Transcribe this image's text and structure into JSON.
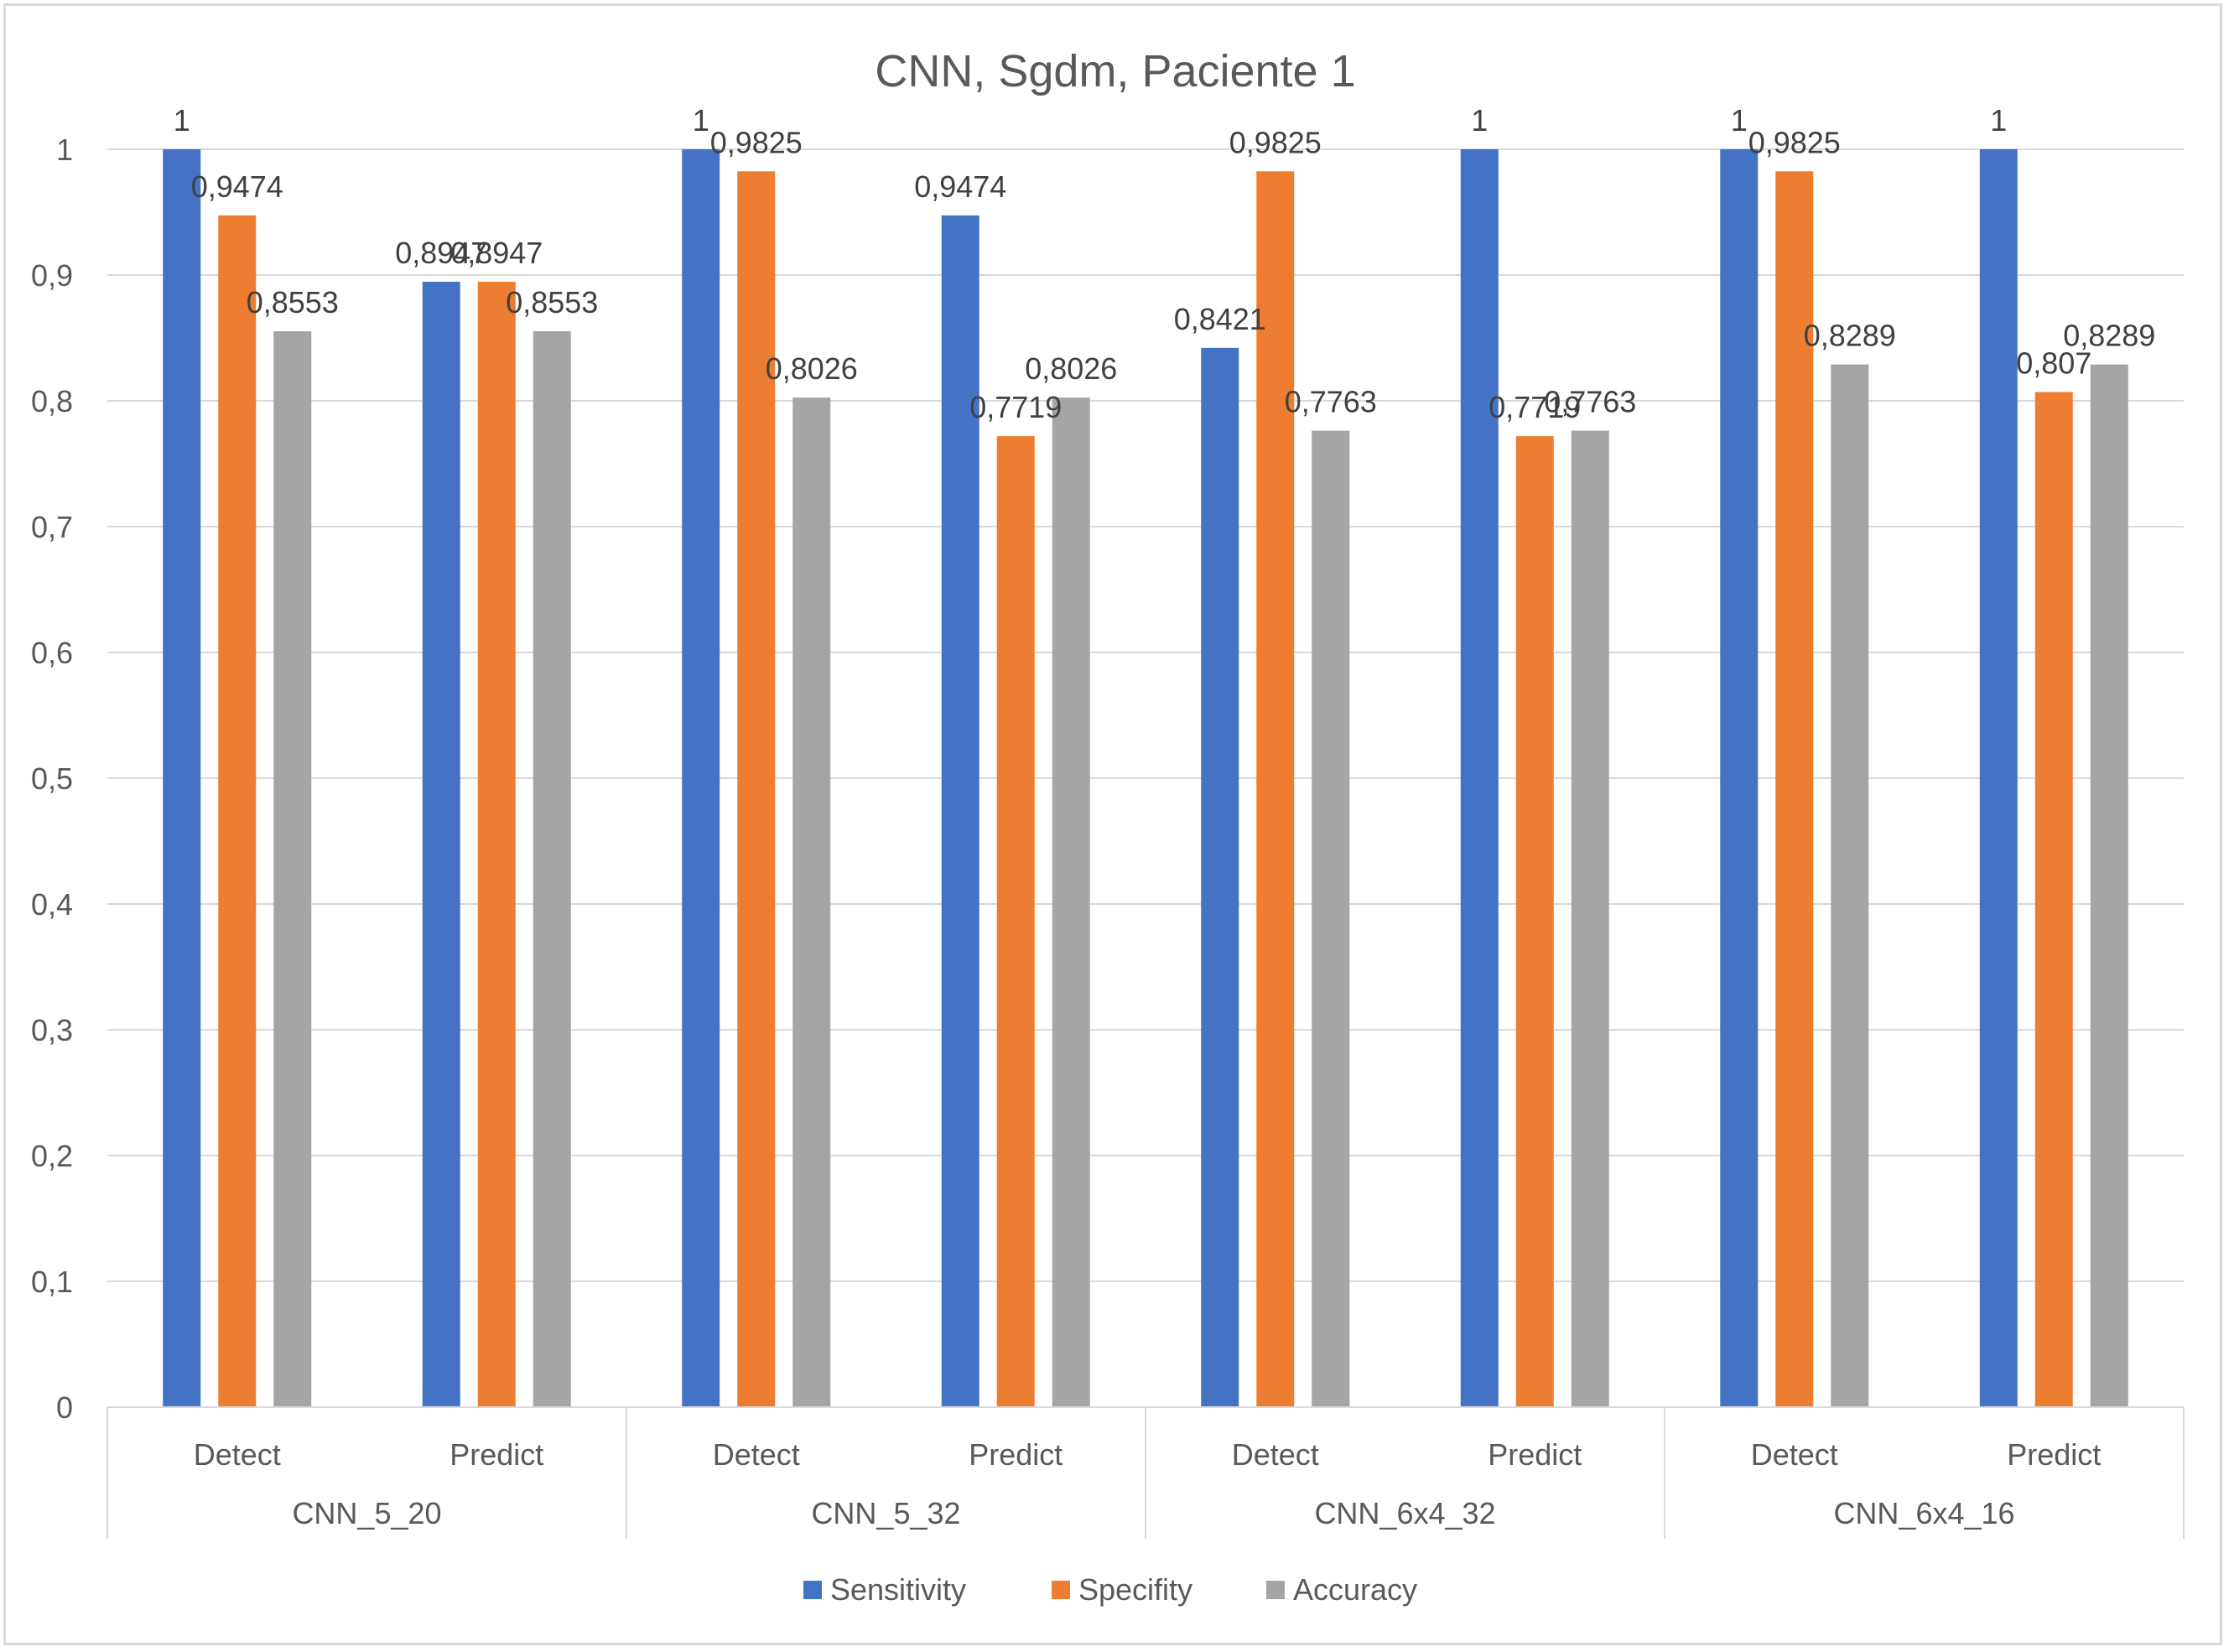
{
  "chart_data": {
    "type": "bar",
    "title": "CNN, Sgdm, Paciente 1",
    "groups": [
      {
        "name": "CNN_5_20",
        "subcategories": [
          "Detect",
          "Predict"
        ]
      },
      {
        "name": "CNN_5_32",
        "subcategories": [
          "Detect",
          "Predict"
        ]
      },
      {
        "name": "CNN_6x4_32",
        "subcategories": [
          "Detect",
          "Predict"
        ]
      },
      {
        "name": "CNN_6x4_16",
        "subcategories": [
          "Detect",
          "Predict"
        ]
      }
    ],
    "categories": [
      "Detect",
      "Predict",
      "Detect",
      "Predict",
      "Detect",
      "Predict",
      "Detect",
      "Predict"
    ],
    "series": [
      {
        "name": "Sensitivity",
        "color": "#4472c4",
        "values": [
          1,
          0.8947,
          1,
          0.9474,
          0.8421,
          1,
          1,
          1
        ],
        "labels": [
          "1",
          "0,8947",
          "1",
          "0,9474",
          "0,8421",
          "1",
          "1",
          "1"
        ]
      },
      {
        "name": "Specifity",
        "color": "#ed7d31",
        "values": [
          0.9474,
          0.8947,
          0.9825,
          0.7719,
          0.9825,
          0.7719,
          0.9825,
          0.807
        ],
        "labels": [
          "0,9474",
          "0,8947",
          "0,9825",
          "0,7719",
          "0,9825",
          "0,7719",
          "0,9825",
          "0,807"
        ]
      },
      {
        "name": "Accuracy",
        "color": "#a5a5a5",
        "values": [
          0.8553,
          0.8553,
          0.8026,
          0.8026,
          0.7763,
          0.7763,
          0.8289,
          0.8289
        ],
        "labels": [
          "0,8553",
          "0,8553",
          "0,8026",
          "0,8026",
          "0,7763",
          "0,7763",
          "0,8289",
          "0,8289"
        ]
      }
    ],
    "ylim": [
      0,
      1
    ],
    "yticks": [
      0,
      0.1,
      0.2,
      0.3,
      0.4,
      0.5,
      0.6,
      0.7,
      0.8,
      0.9,
      1
    ],
    "ytick_labels": [
      "0",
      "0,1",
      "0,2",
      "0,3",
      "0,4",
      "0,5",
      "0,6",
      "0,7",
      "0,8",
      "0,9",
      "1"
    ],
    "grid": true,
    "legend": "bottom"
  }
}
